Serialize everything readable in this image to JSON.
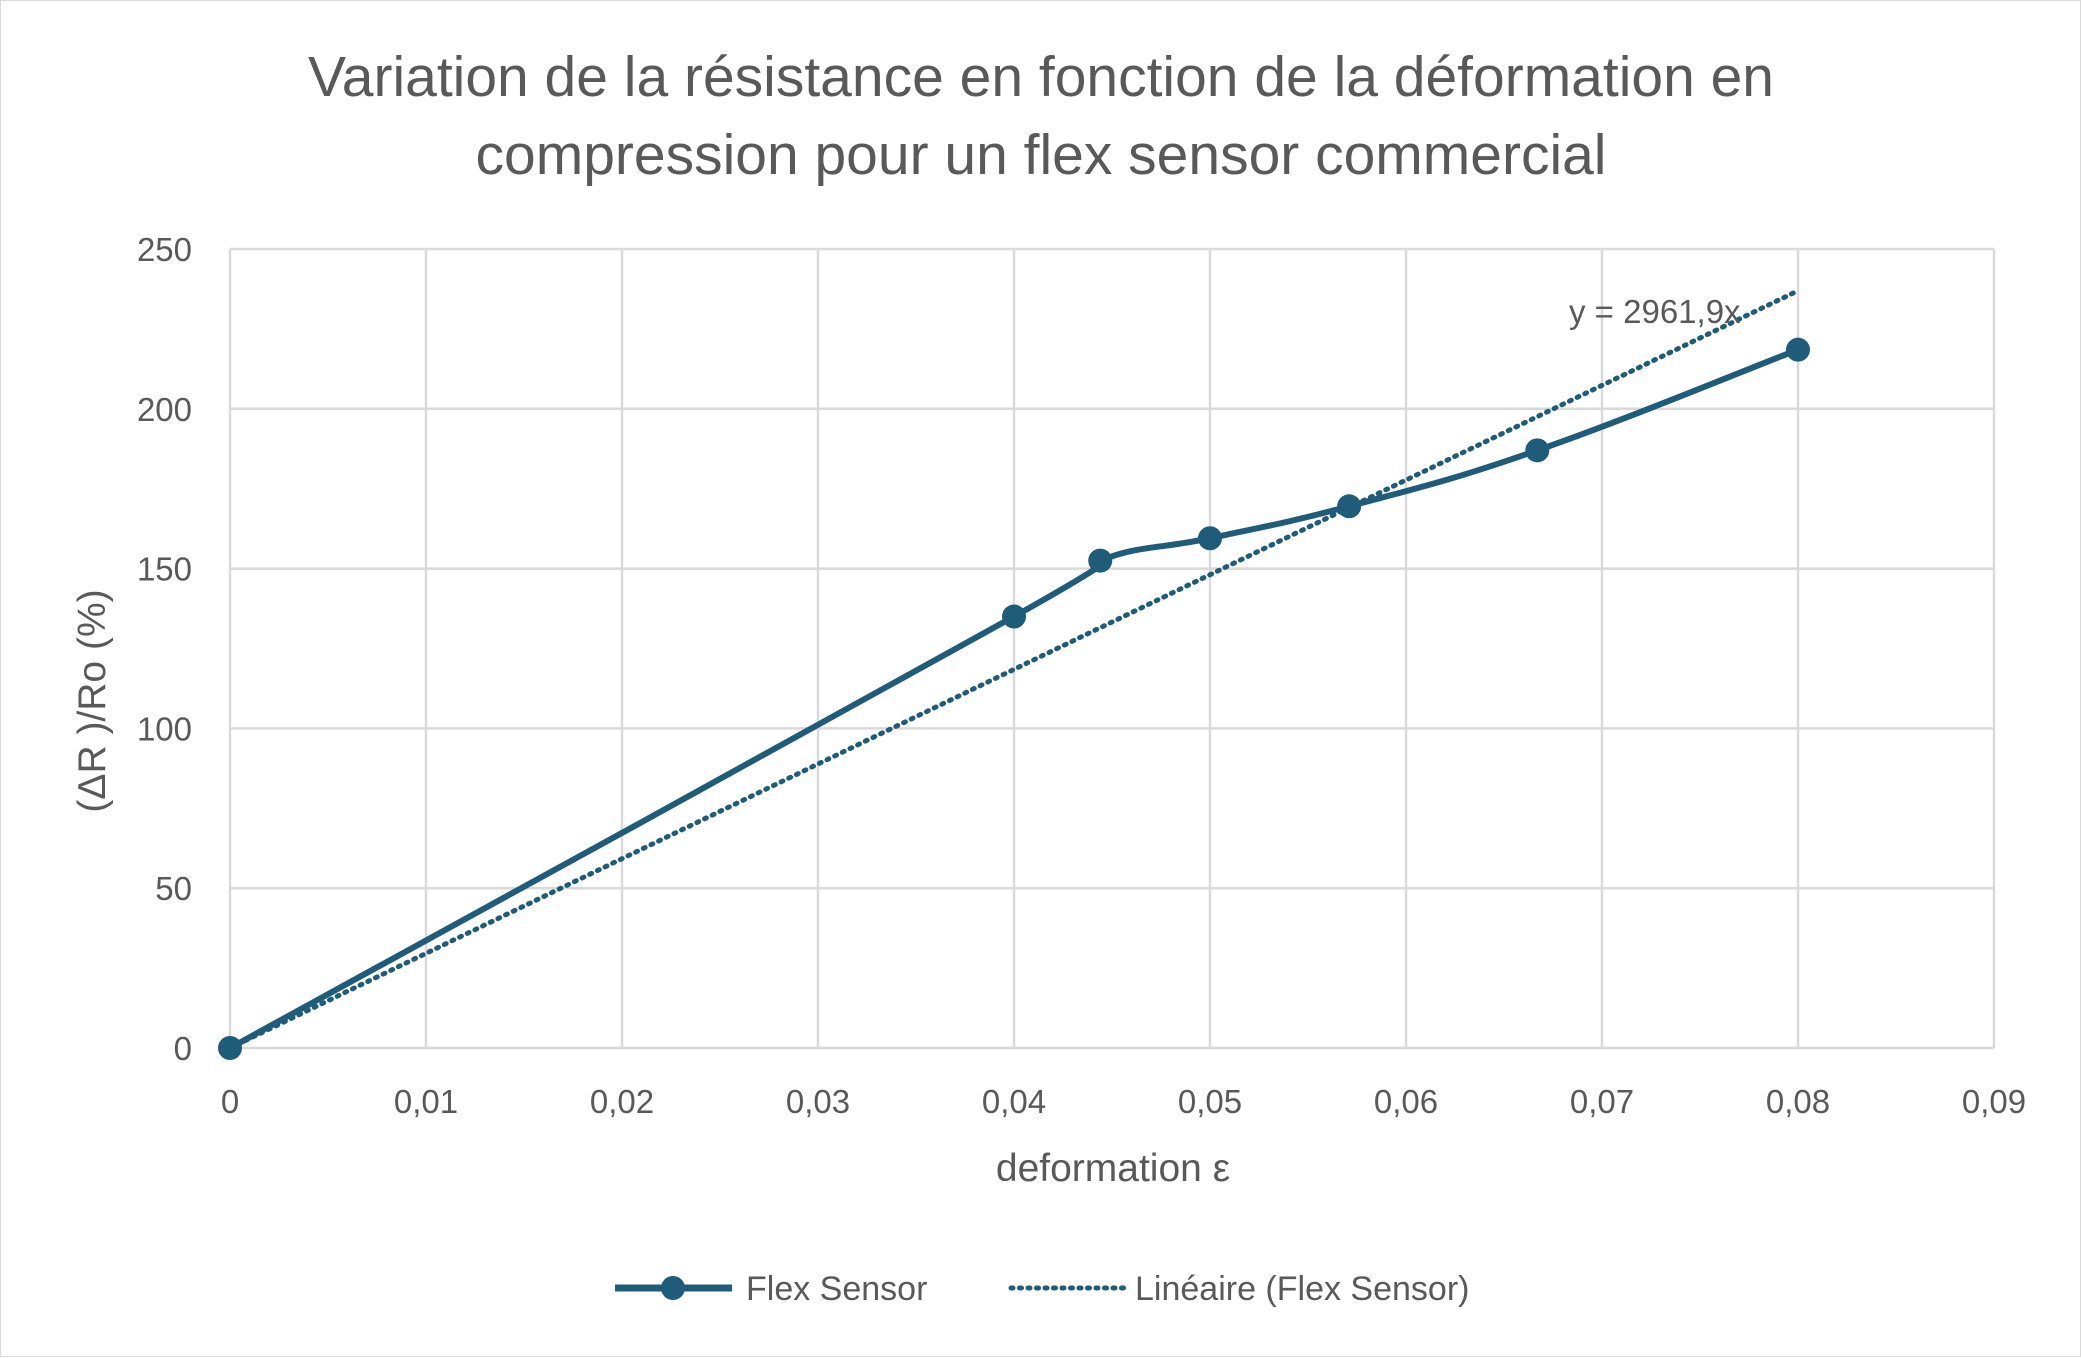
{
  "chart_data": {
    "type": "line",
    "title_lines": [
      "Variation de la résistance en fonction de la déformation en",
      "compression pour un flex sensor commercial"
    ],
    "xlabel": "deformation ε",
    "ylabel": "(ΔR )/Ro (%)",
    "xlim": [
      0,
      0.09
    ],
    "ylim": [
      0,
      250
    ],
    "x_ticks": [
      0,
      0.01,
      0.02,
      0.03,
      0.04,
      0.05,
      0.06,
      0.07,
      0.08,
      0.09
    ],
    "x_tick_labels": [
      "0",
      "0,01",
      "0,02",
      "0,03",
      "0,04",
      "0,05",
      "0,06",
      "0,07",
      "0,08",
      "0,09"
    ],
    "y_ticks": [
      0,
      50,
      100,
      150,
      200,
      250
    ],
    "y_tick_labels": [
      "0",
      "50",
      "100",
      "150",
      "200",
      "250"
    ],
    "grid": true,
    "legend_position": "bottom",
    "series": [
      {
        "name": "Flex Sensor",
        "color": "#1f5c7a",
        "style": "solid-line-with-markers",
        "x": [
          0,
          0.04,
          0.0444,
          0.05,
          0.0571,
          0.0667,
          0.08
        ],
        "y": [
          0,
          135,
          152.5,
          159.5,
          169.5,
          187,
          218.5
        ]
      },
      {
        "name": "Linéaire (Flex Sensor)",
        "color": "#1f5c7a",
        "style": "dotted-trendline",
        "slope": 2961.9,
        "x": [
          0,
          0.08
        ],
        "y": [
          0,
          236.95
        ]
      }
    ],
    "annotations": [
      {
        "text": "y = 2961,9x"
      }
    ]
  }
}
